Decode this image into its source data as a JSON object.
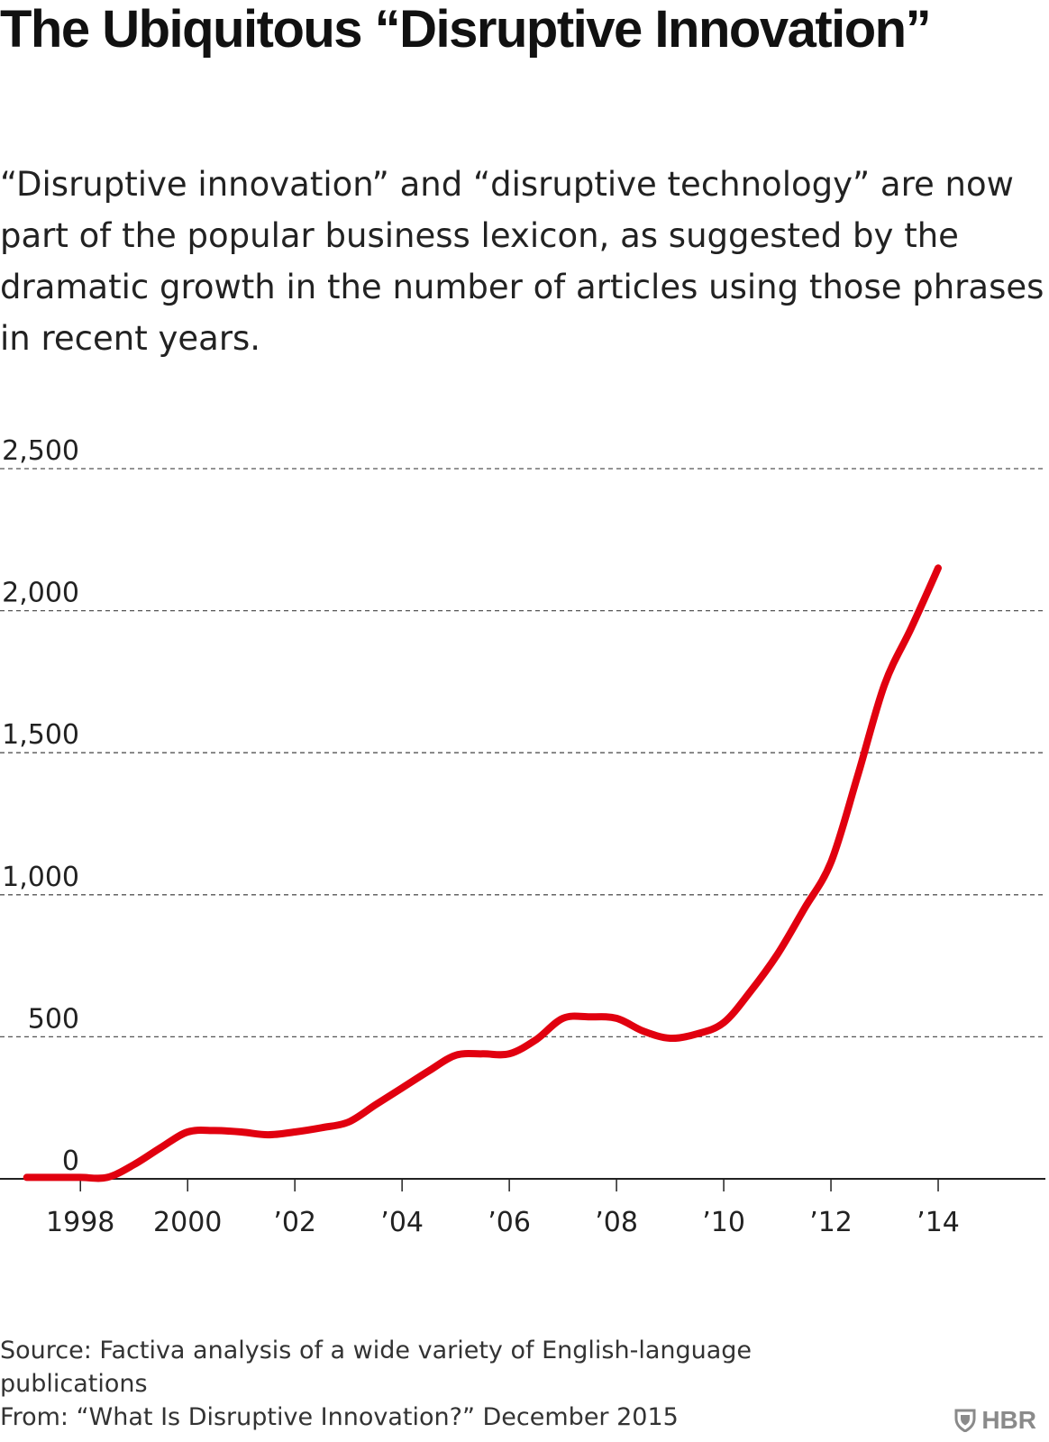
{
  "header": {
    "title": "The Ubiquitous “Disruptive Innovation”",
    "subtitle": "“Disruptive innovation” and “disruptive technology” are now part of the popular business lexicon, as suggested by the dramatic growth in the number of articles using those phrases in recent years."
  },
  "chart_data": {
    "type": "line",
    "title": "The Ubiquitous “Disruptive Innovation”",
    "xlabel": "",
    "ylabel": "",
    "xlim": [
      1996.5,
      2016
    ],
    "ylim": [
      0,
      2500
    ],
    "grid": true,
    "y_ticks": [
      0,
      500,
      1000,
      1500,
      2000,
      2500
    ],
    "y_tick_labels": [
      "0",
      "500",
      "1,000",
      "1,500",
      "2,000",
      "2,500"
    ],
    "x_ticks": [
      1998,
      2000,
      2002,
      2004,
      2006,
      2008,
      2010,
      2012,
      2014
    ],
    "x_tick_labels": [
      "1998",
      "2000",
      "’02",
      "’04",
      "’06",
      "’08",
      "’10",
      "’12",
      "’14"
    ],
    "series": [
      {
        "color": "#e1000f",
        "x": [
          1997,
          1997.5,
          1998,
          1998.5,
          1999,
          1999.5,
          2000,
          2000.5,
          2001,
          2001.5,
          2002,
          2002.5,
          2003,
          2003.5,
          2004,
          2004.5,
          2005,
          2005.5,
          2006,
          2006.5,
          2007,
          2007.5,
          2008,
          2008.5,
          2009,
          2009.5,
          2010,
          2010.5,
          2011,
          2011.5,
          2012,
          2012.5,
          2013,
          2013.5,
          2014
        ],
        "values": [
          5,
          5,
          5,
          5,
          50,
          110,
          165,
          170,
          165,
          155,
          165,
          180,
          200,
          260,
          320,
          380,
          435,
          440,
          440,
          490,
          565,
          570,
          565,
          520,
          495,
          510,
          550,
          660,
          790,
          950,
          1115,
          1420,
          1740,
          1940,
          2150
        ]
      }
    ]
  },
  "footer": {
    "source": "Source: Factiva analysis of a wide variety of English-language publications",
    "from": "From: “What Is Disruptive Innovation?” December 2015",
    "brand": "HBR"
  },
  "colors": {
    "line": "#e1000f",
    "grid": "#555555",
    "text": "#222222",
    "brand": "#8a8a8a"
  }
}
